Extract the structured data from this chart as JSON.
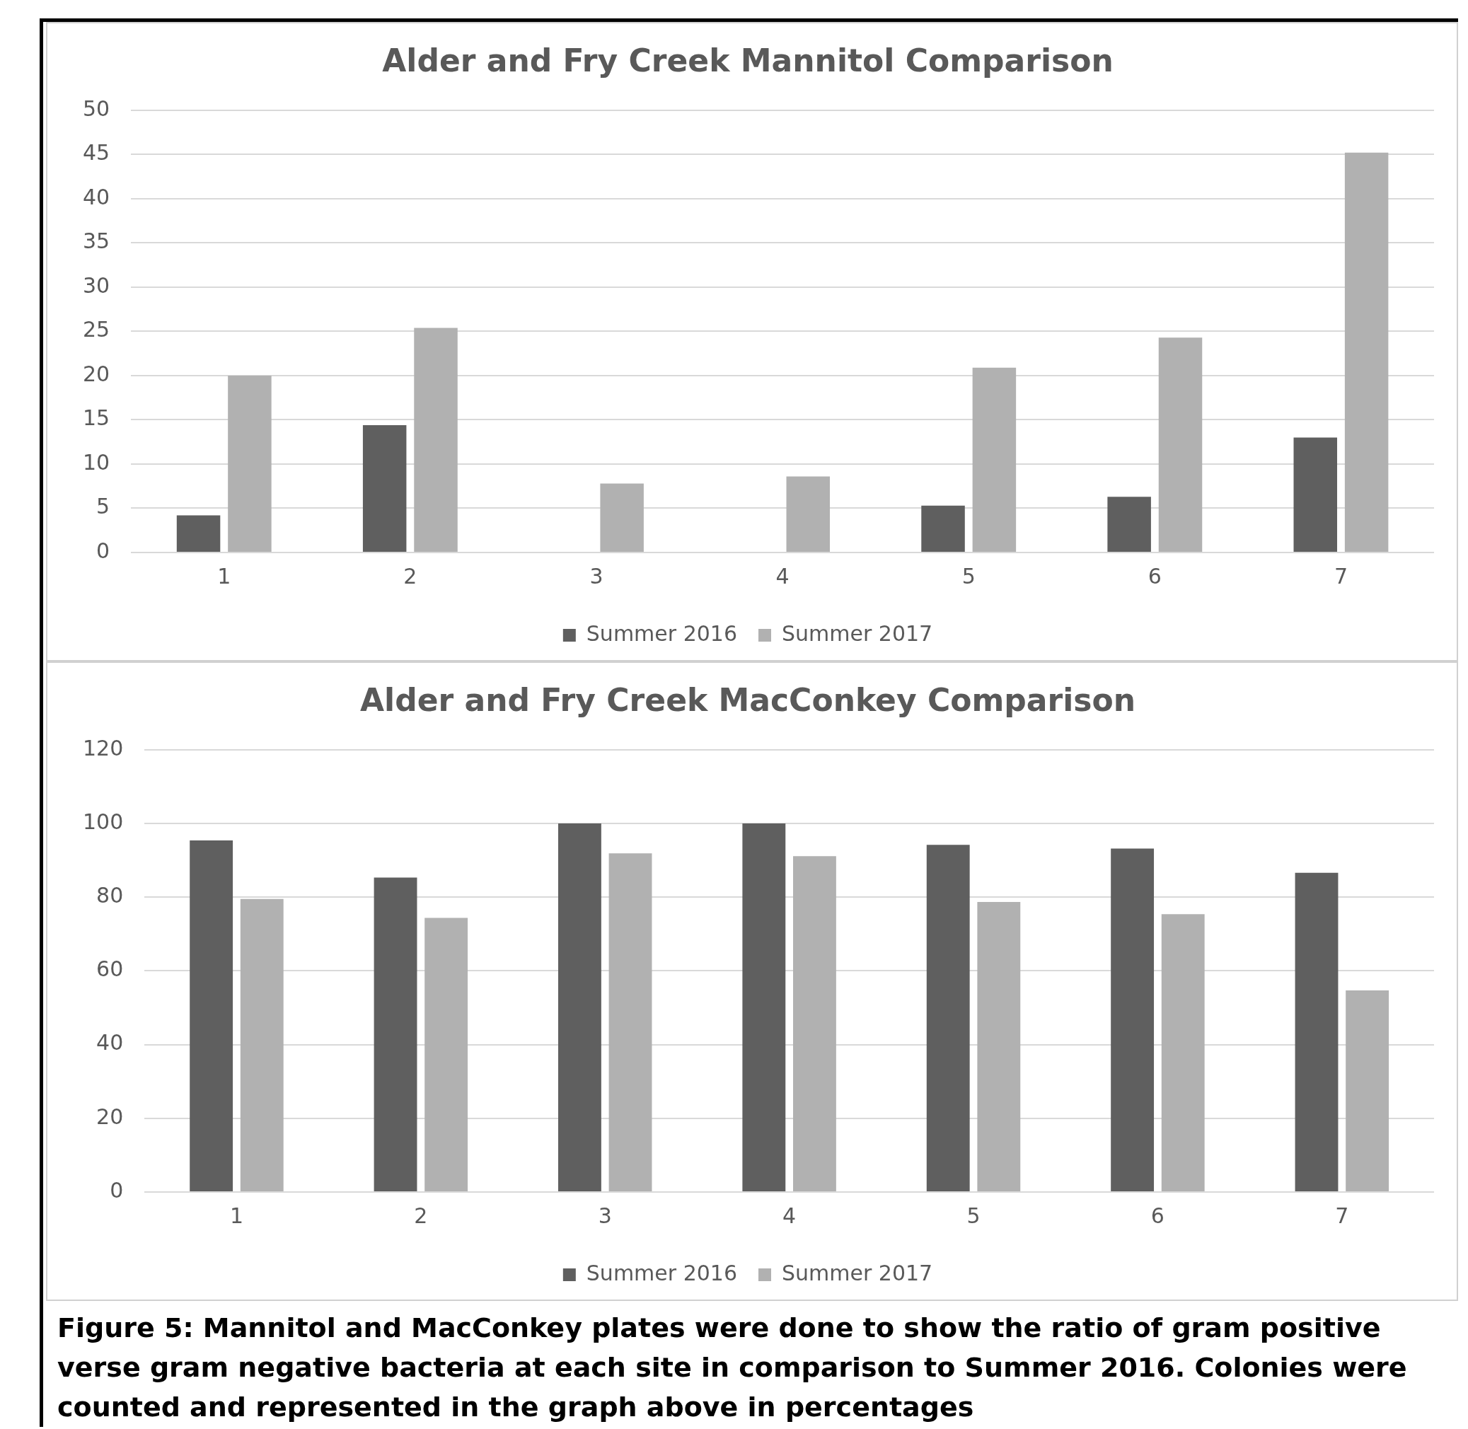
{
  "chart_data": [
    {
      "type": "bar",
      "title": "Alder and Fry Creek Mannitol Comparison",
      "categories": [
        "1",
        "2",
        "3",
        "4",
        "5",
        "6",
        "7"
      ],
      "series": [
        {
          "name": "Summer 2016",
          "color": "#5f5f5f",
          "values": [
            4.2,
            14.4,
            0,
            0,
            5.3,
            6.3,
            13.0
          ]
        },
        {
          "name": "Summer 2017",
          "color": "#b1b1b1",
          "values": [
            20.0,
            25.4,
            7.8,
            8.6,
            20.9,
            24.3,
            45.2
          ]
        }
      ],
      "ylim": [
        0,
        50
      ],
      "yticks": [
        0,
        5,
        10,
        15,
        20,
        25,
        30,
        35,
        40,
        45,
        50
      ],
      "grid": "y",
      "legend": "bottom"
    },
    {
      "type": "bar",
      "title": "Alder and Fry Creek MacConkey Comparison",
      "categories": [
        "1",
        "2",
        "3",
        "4",
        "5",
        "6",
        "7"
      ],
      "series": [
        {
          "name": "Summer 2016",
          "color": "#5f5f5f",
          "values": [
            95.4,
            85.3,
            100,
            100,
            94.2,
            93.2,
            86.6
          ]
        },
        {
          "name": "Summer 2017",
          "color": "#b1b1b1",
          "values": [
            79.5,
            74.4,
            91.9,
            91.1,
            78.7,
            75.4,
            54.7
          ]
        }
      ],
      "ylim": [
        0,
        120
      ],
      "yticks": [
        0,
        20,
        40,
        60,
        80,
        100,
        120
      ],
      "grid": "y",
      "legend": "bottom",
      "annotations": [
        "Figure 5: Mannitol and MacConkey plates were done to show the ratio of gram positive verse gram negative bacteria at each site in comparison to Summer 2016. Colonies were counted and represented in the graph above in percentages"
      ]
    }
  ]
}
